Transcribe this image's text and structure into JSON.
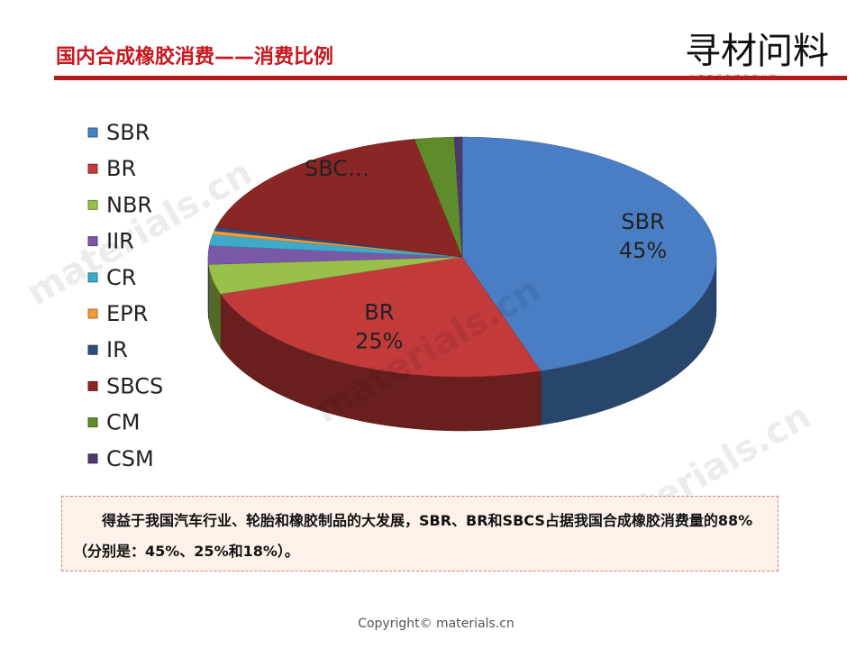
{
  "header": {
    "title": "国内合成橡胶消费——消费比例",
    "logo": "寻材问料",
    "logo_sub": "让天下没有难找的材料"
  },
  "chart_data": {
    "type": "pie",
    "categories": [
      "SBR",
      "BR",
      "NBR",
      "IIR",
      "CR",
      "EPR",
      "IR",
      "SBCS",
      "CM",
      "CSM"
    ],
    "values": [
      45,
      25,
      4,
      2.5,
      1.5,
      0.5,
      0.5,
      18,
      2.5,
      0.5
    ],
    "value_labels": [
      "45%",
      "25%",
      null,
      null,
      null,
      null,
      null,
      null,
      null,
      null
    ],
    "slice_labels": [
      "SBR",
      "BR",
      null,
      null,
      null,
      null,
      null,
      "SBC…",
      null,
      null
    ],
    "colors": [
      "#4a7ec4",
      "#c23a3a",
      "#98c04a",
      "#7a58a8",
      "#3ea9c8",
      "#f39a36",
      "#2d4e7c",
      "#8a2626",
      "#5e8c2c",
      "#4c3a6e"
    ],
    "legend": "left"
  },
  "note": "得益于我国汽车行业、轮胎和橡胶制品的大发展，SBR、BR和SBCS占据我国合成橡胶消费量的88%（分别是：45%、25%和18%）。",
  "watermark": "materials.cn",
  "footer": "Copyright© materials.cn"
}
